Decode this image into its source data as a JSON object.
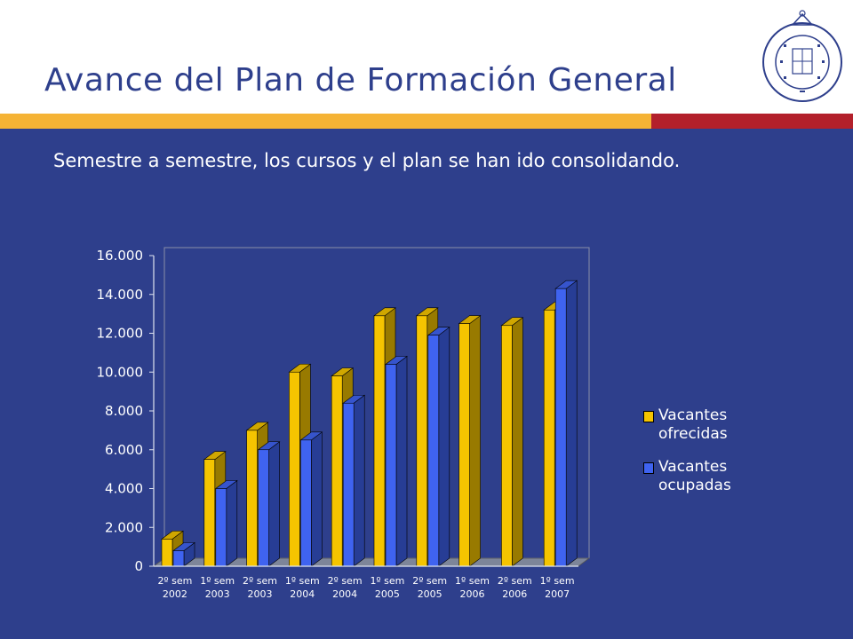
{
  "slide": {
    "title": "Avance del Plan de Formación General",
    "subtitle": "Semestre a semestre, los cursos y el plan se han ido consolidando.",
    "logo_text": "PONTIFICIA UNIVERSIDAD CATOLICA DE CHILE"
  },
  "colors": {
    "background": "#2e3f8c",
    "header": "#ffffff",
    "stripe_gold": "#f5b335",
    "stripe_red": "#b3202b",
    "series_ofrecidas": "#f5c400",
    "series_ocupadas": "#3f63f0"
  },
  "legend": {
    "ofrecidas": [
      "Vacantes",
      "ofrecidas"
    ],
    "ocupadas": [
      "Vacantes",
      "ocupadas"
    ]
  },
  "chart_data": {
    "type": "bar",
    "style": "3d-clustered-column",
    "categories": [
      [
        "2º sem",
        "2002"
      ],
      [
        "1º sem",
        "2003"
      ],
      [
        "2º sem",
        "2003"
      ],
      [
        "1º sem",
        "2004"
      ],
      [
        "2º sem",
        "2004"
      ],
      [
        "1º sem",
        "2005"
      ],
      [
        "2º sem",
        "2005"
      ],
      [
        "1º sem",
        "2006"
      ],
      [
        "2º sem",
        "2006"
      ],
      [
        "1º sem",
        "2007"
      ]
    ],
    "series": [
      {
        "name": "Vacantes ofrecidas",
        "values": [
          1400,
          5500,
          7000,
          10000,
          9800,
          12900,
          12900,
          12500,
          12400,
          13200
        ]
      },
      {
        "name": "Vacantes ocupadas",
        "values": [
          800,
          4000,
          6000,
          6500,
          8400,
          10400,
          11900,
          0,
          0,
          14300
        ]
      }
    ],
    "yticks": [
      "0",
      "2.000",
      "4.000",
      "6.000",
      "8.000",
      "10.000",
      "12.000",
      "14.000",
      "16.000"
    ],
    "ylim": [
      0,
      16000
    ],
    "grid": false,
    "legend_position": "right"
  }
}
